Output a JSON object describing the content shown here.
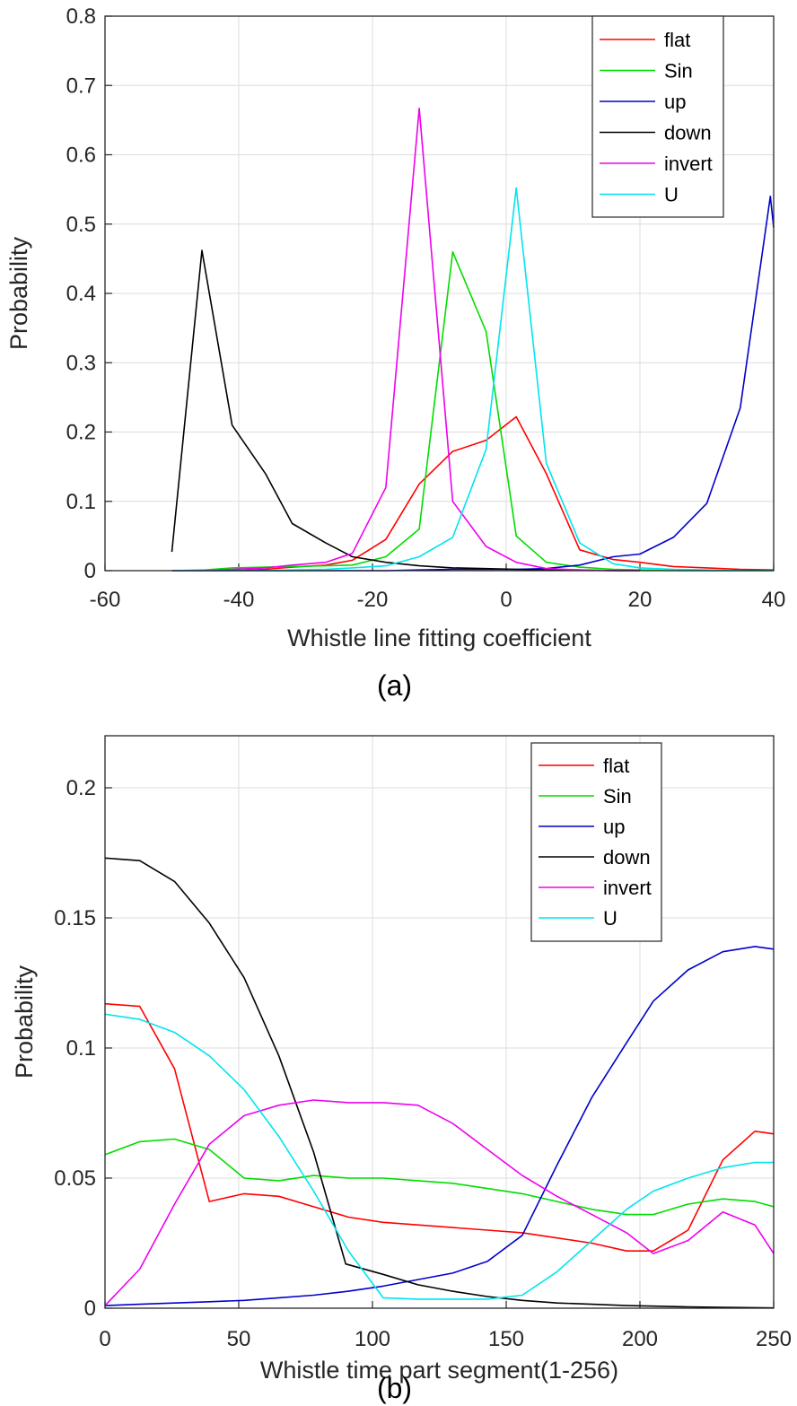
{
  "chart_data": [
    {
      "type": "line",
      "caption": "(a)",
      "xlabel": "Whistle line fitting coefficient",
      "ylabel": "Probability",
      "xlim": [
        -60,
        40
      ],
      "ylim": [
        0,
        0.8
      ],
      "xticks": [
        "-60",
        "-40",
        "-20",
        "0",
        "20",
        "40"
      ],
      "yticks": [
        "0",
        "0.1",
        "0.2",
        "0.3",
        "0.4",
        "0.5",
        "0.6",
        "0.7",
        "0.8"
      ],
      "grid": true,
      "legend_position": "top-right",
      "series": [
        {
          "name": "flat",
          "color": "#ff0000",
          "x": [
            -50,
            -45,
            -41,
            -36,
            -32,
            -27,
            -23,
            -18,
            -13,
            -8,
            -3,
            1.5,
            6,
            11,
            16,
            20,
            25,
            30,
            35,
            40
          ],
          "y": [
            0,
            0,
            0,
            0.002,
            0.005,
            0.008,
            0.015,
            0.045,
            0.125,
            0.172,
            0.188,
            0.222,
            0.14,
            0.03,
            0.016,
            0.012,
            0.006,
            0.004,
            0.002,
            0.001
          ]
        },
        {
          "name": "Sin",
          "color": "#00dd00",
          "x": [
            -50,
            -45,
            -41,
            -36,
            -32,
            -27,
            -23,
            -18,
            -13,
            -8,
            -3,
            1.5,
            6,
            11,
            16,
            20,
            25,
            30,
            35,
            40
          ],
          "y": [
            0,
            0.001,
            0.004,
            0.005,
            0.006,
            0.007,
            0.008,
            0.02,
            0.06,
            0.46,
            0.345,
            0.05,
            0.012,
            0.005,
            0.002,
            0.001,
            0,
            0,
            0,
            0
          ]
        },
        {
          "name": "up",
          "color": "#0000cc",
          "x": [
            -50,
            -45,
            -41,
            -36,
            -32,
            -27,
            -23,
            -18,
            -13,
            -8,
            -3,
            1.5,
            6,
            11,
            16,
            20,
            25,
            30,
            35,
            39.5,
            40
          ],
          "y": [
            0,
            0,
            0,
            0,
            0,
            0,
            0,
            0,
            0.001,
            0.002,
            0.002,
            0.002,
            0.003,
            0.008,
            0.02,
            0.024,
            0.048,
            0.097,
            0.235,
            0.54,
            0.495
          ]
        },
        {
          "name": "down",
          "color": "#000000",
          "x": [
            -50,
            -45.5,
            -41,
            -36,
            -32,
            -27,
            -23,
            -18,
            -13,
            -8,
            -3,
            1.5,
            6,
            11,
            16,
            20
          ],
          "y": [
            0.027,
            0.462,
            0.21,
            0.14,
            0.068,
            0.04,
            0.02,
            0.012,
            0.007,
            0.004,
            0.003,
            0.002,
            0.001,
            0.001,
            0,
            0
          ]
        },
        {
          "name": "invert",
          "color": "#ee00ee",
          "x": [
            -50,
            -45,
            -41,
            -36,
            -32,
            -27,
            -23,
            -18,
            -13,
            -8,
            -3,
            1.5,
            6,
            11,
            16,
            20
          ],
          "y": [
            0,
            0,
            0.002,
            0.004,
            0.008,
            0.012,
            0.025,
            0.12,
            0.667,
            0.1,
            0.035,
            0.012,
            0.003,
            0.001,
            0,
            0
          ]
        },
        {
          "name": "U",
          "color": "#00e5ee",
          "x": [
            -50,
            -45,
            -41,
            -36,
            -32,
            -27,
            -23,
            -18,
            -13,
            -8,
            -3,
            1.5,
            6,
            11,
            16,
            20,
            25,
            30,
            35,
            40
          ],
          "y": [
            0,
            0,
            0,
            0,
            0.001,
            0.002,
            0.004,
            0.007,
            0.02,
            0.048,
            0.175,
            0.552,
            0.155,
            0.04,
            0.01,
            0.004,
            0.002,
            0.001,
            0,
            0
          ]
        }
      ]
    },
    {
      "type": "line",
      "caption": "(b)",
      "xlabel": "Whistle time part segment(1-256)",
      "ylabel": "Probability",
      "xlim": [
        0,
        250
      ],
      "ylim": [
        0,
        0.22
      ],
      "xticks": [
        "0",
        "50",
        "100",
        "150",
        "200",
        "250"
      ],
      "yticks": [
        "0",
        "0.05",
        "0.1",
        "0.15",
        "0.2"
      ],
      "grid": true,
      "legend_position": "top-right",
      "series": [
        {
          "name": "flat",
          "color": "#ff0000",
          "x": [
            0,
            13,
            26,
            39,
            52,
            65,
            78,
            91,
            104,
            117,
            130,
            143,
            156,
            169,
            182,
            195,
            205,
            218,
            231,
            243,
            250
          ],
          "y": [
            0.117,
            0.116,
            0.092,
            0.041,
            0.044,
            0.043,
            0.039,
            0.035,
            0.033,
            0.032,
            0.031,
            0.03,
            0.029,
            0.027,
            0.025,
            0.022,
            0.022,
            0.03,
            0.057,
            0.068,
            0.067
          ]
        },
        {
          "name": "Sin",
          "color": "#00dd00",
          "x": [
            0,
            13,
            26,
            39,
            52,
            65,
            78,
            91,
            104,
            117,
            130,
            143,
            156,
            169,
            182,
            195,
            205,
            218,
            231,
            243,
            250
          ],
          "y": [
            0.059,
            0.064,
            0.065,
            0.061,
            0.05,
            0.049,
            0.051,
            0.05,
            0.05,
            0.049,
            0.048,
            0.046,
            0.044,
            0.041,
            0.038,
            0.036,
            0.036,
            0.04,
            0.042,
            0.041,
            0.039
          ]
        },
        {
          "name": "up",
          "color": "#0000cc",
          "x": [
            0,
            13,
            26,
            39,
            52,
            65,
            78,
            91,
            104,
            117,
            130,
            143,
            156,
            169,
            182,
            195,
            205,
            218,
            231,
            243,
            250
          ],
          "y": [
            0.001,
            0.0015,
            0.002,
            0.0025,
            0.003,
            0.004,
            0.005,
            0.0065,
            0.0085,
            0.011,
            0.0135,
            0.018,
            0.028,
            0.055,
            0.081,
            0.102,
            0.118,
            0.13,
            0.137,
            0.139,
            0.138
          ]
        },
        {
          "name": "down",
          "color": "#000000",
          "x": [
            0,
            13,
            26,
            39,
            52,
            65,
            78,
            90,
            104,
            117,
            130,
            143,
            156,
            169,
            182,
            195,
            205,
            218,
            231,
            243,
            250
          ],
          "y": [
            0.173,
            0.172,
            0.164,
            0.148,
            0.127,
            0.097,
            0.06,
            0.017,
            0.013,
            0.009,
            0.0065,
            0.0045,
            0.003,
            0.002,
            0.0015,
            0.001,
            0.0008,
            0.0005,
            0.0003,
            0.0002,
            0.0001
          ]
        },
        {
          "name": "invert",
          "color": "#ee00ee",
          "x": [
            0,
            13,
            26,
            39,
            52,
            65,
            78,
            91,
            104,
            117,
            130,
            143,
            156,
            169,
            182,
            195,
            205,
            218,
            231,
            243,
            250
          ],
          "y": [
            0.001,
            0.015,
            0.04,
            0.063,
            0.074,
            0.078,
            0.08,
            0.079,
            0.079,
            0.078,
            0.071,
            0.061,
            0.051,
            0.043,
            0.036,
            0.029,
            0.021,
            0.026,
            0.037,
            0.032,
            0.021
          ]
        },
        {
          "name": "U",
          "color": "#00e5ee",
          "x": [
            0,
            13,
            26,
            39,
            52,
            65,
            78,
            91,
            104,
            117,
            130,
            143,
            156,
            169,
            182,
            195,
            205,
            218,
            231,
            243,
            250
          ],
          "y": [
            0.113,
            0.111,
            0.106,
            0.097,
            0.084,
            0.066,
            0.045,
            0.022,
            0.004,
            0.0035,
            0.0035,
            0.0035,
            0.005,
            0.014,
            0.026,
            0.038,
            0.045,
            0.05,
            0.054,
            0.056,
            0.056
          ]
        }
      ]
    }
  ]
}
